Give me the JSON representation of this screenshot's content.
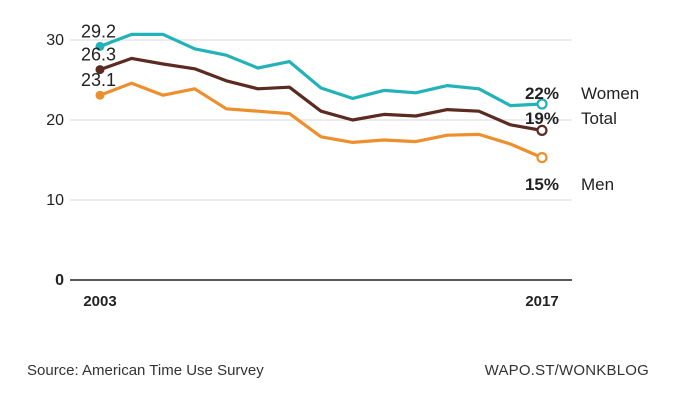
{
  "chart_data": {
    "type": "line",
    "x": [
      2003,
      2004,
      2005,
      2006,
      2007,
      2008,
      2009,
      2010,
      2011,
      2012,
      2013,
      2014,
      2015,
      2016,
      2017
    ],
    "x_tick_labels": [
      "2003",
      "2017"
    ],
    "ylim": [
      0,
      32
    ],
    "y_ticks": [
      0,
      10,
      20,
      30
    ],
    "grid": true,
    "series": [
      {
        "name": "Women",
        "color": "#22b2b8",
        "values": [
          29.2,
          30.7,
          30.7,
          28.9,
          28.1,
          26.5,
          27.3,
          24.0,
          22.7,
          23.7,
          23.4,
          24.3,
          23.9,
          21.8,
          22.0
        ],
        "start_label": "29.2",
        "end_label": "22%"
      },
      {
        "name": "Total",
        "color": "#5b2a20",
        "values": [
          26.3,
          27.7,
          27.0,
          26.4,
          24.9,
          23.9,
          24.1,
          21.1,
          20.0,
          20.7,
          20.5,
          21.3,
          21.1,
          19.4,
          18.7
        ],
        "start_label": "26.3",
        "end_label": "19%"
      },
      {
        "name": "Men",
        "color": "#ec8f2c",
        "values": [
          23.1,
          24.6,
          23.1,
          23.9,
          21.4,
          21.1,
          20.8,
          17.9,
          17.2,
          17.5,
          17.3,
          18.1,
          18.2,
          17.0,
          15.3
        ],
        "start_label": "23.1",
        "end_label": "15%"
      }
    ]
  },
  "footer": {
    "source": "Source: American Time Use Survey",
    "credit": "WAPO.ST/WONKBLOG"
  }
}
